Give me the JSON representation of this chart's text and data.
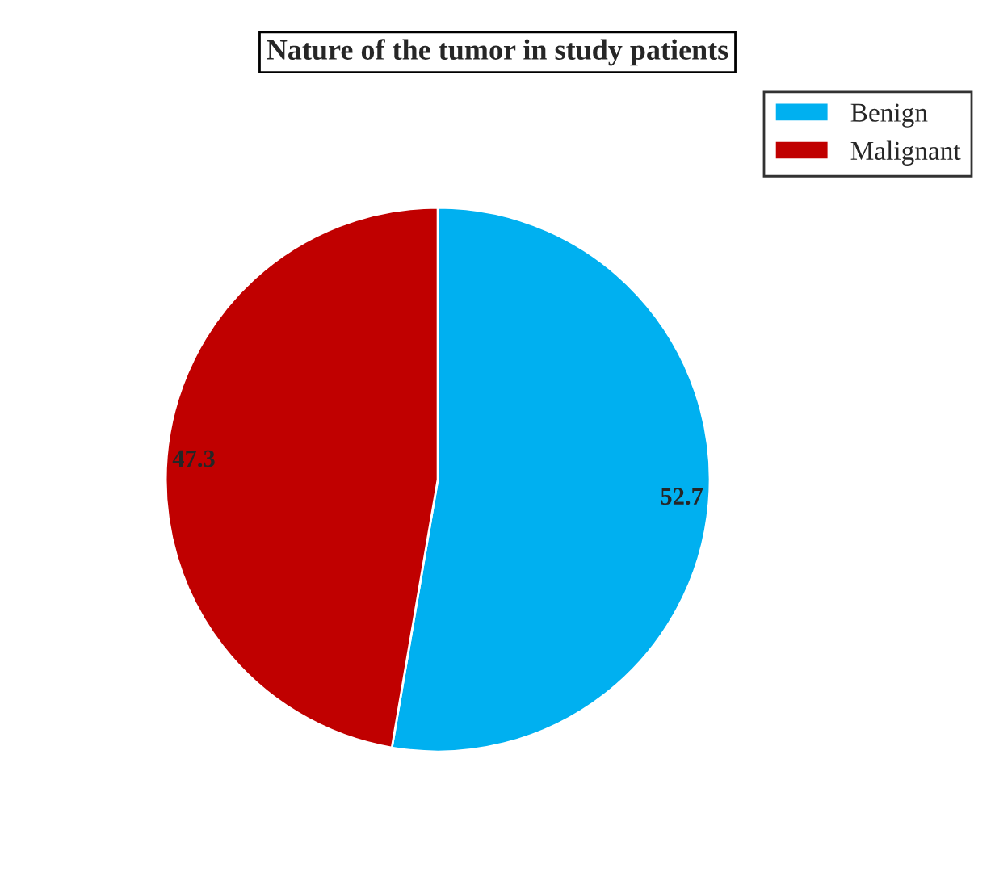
{
  "chart_data": {
    "type": "pie",
    "title": "Nature of the tumor in study patients",
    "categories": [
      "Benign",
      "Malignant"
    ],
    "values": [
      52.7,
      47.3
    ],
    "colors": [
      "#00b0f0",
      "#c00000"
    ],
    "data_labels": true,
    "legend": "top right"
  }
}
